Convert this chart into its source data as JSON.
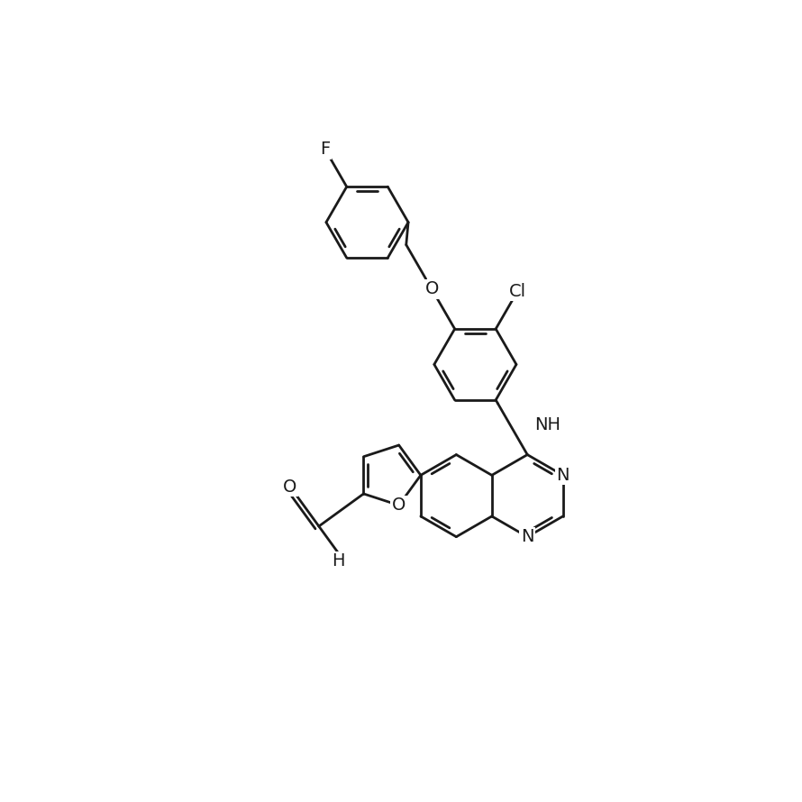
{
  "bg": "#ffffff",
  "lc": "#1a1a1a",
  "lw": 2.0,
  "dbo": 0.055,
  "fs": 14,
  "xlim": [
    0,
    10
  ],
  "ylim": [
    0,
    10
  ]
}
